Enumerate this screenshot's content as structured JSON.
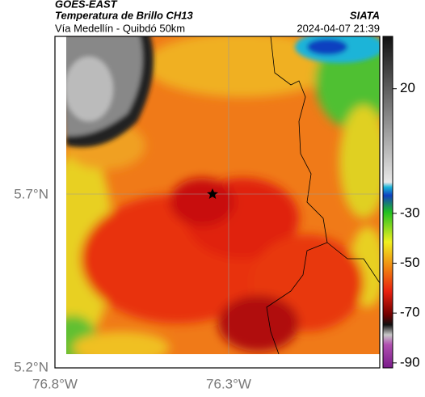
{
  "header": {
    "source": "GOES-EAST",
    "title": "Temperatura de Brillo CH13",
    "subtitle": "Vía Medellín - Quibdó 50km",
    "agency": "SIATA",
    "datetime": "2024-04-07 21:39"
  },
  "map": {
    "lat_labels": [
      "5.7°N",
      "5.2°N"
    ],
    "lon_labels": [
      "76.8°W",
      "76.3°W"
    ]
  },
  "colorbar": {
    "lim": [
      41,
      -92
    ],
    "ticks": [
      20,
      -30,
      -50,
      -70,
      -90
    ]
  }
}
